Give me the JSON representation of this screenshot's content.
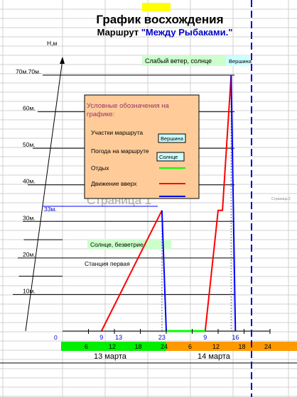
{
  "title": "График восхождения",
  "route": {
    "label": "Маршрут",
    "name": "\"Между Рыбаками.\""
  },
  "watermark": "Страница 1",
  "side_note": "Страница 2",
  "colors": {
    "accent": "#ffff00",
    "route": "#0000cc",
    "ascent": "#ff0000",
    "descent": "#0000ff",
    "rest": "#00ff00",
    "weather_bg": "#ccffcc",
    "summit_bg": "#ccffff",
    "legend_bg": "#ffcc99",
    "legend_text": "#993366",
    "day1_bar": "#00ee00",
    "day2_bar": "#ff9900"
  },
  "legend": {
    "title": "Условные обозначения на графике:",
    "items": [
      {
        "label": "Участки маршрута",
        "badge": "Вершина"
      },
      {
        "label": "Погода на маршруте",
        "badge": "Солнце"
      },
      {
        "label": "Отдых",
        "line": "rest"
      },
      {
        "label": "Движение вверх",
        "line": "ascent"
      }
    ]
  },
  "annotations": [
    {
      "text": "Слабый ветер, солнце",
      "kind": "weather"
    },
    {
      "text": "Вершина",
      "kind": "summit"
    },
    {
      "text": "Солнце, безветрие",
      "kind": "weather"
    },
    {
      "text": "Станция первая",
      "kind": "plain"
    }
  ],
  "chart_data": {
    "type": "line",
    "ylabel": "Н,м",
    "ylim": [
      0,
      80
    ],
    "yticks": [
      {
        "value": 10,
        "label": "10м."
      },
      {
        "value": 20,
        "label": "20м."
      },
      {
        "value": 30,
        "label": "30м."
      },
      {
        "value": 40,
        "label": "40м."
      },
      {
        "value": 50,
        "label": "50м."
      },
      {
        "value": 60,
        "label": "60м."
      },
      {
        "value": 70,
        "label": "70м.70м."
      }
    ],
    "origin_label": "0",
    "extra_ylabel": "33м.",
    "xlim": [
      0,
      48
    ],
    "series": [
      {
        "kind": "ascent",
        "points": [
          [
            9,
            0
          ],
          [
            23,
            33
          ]
        ]
      },
      {
        "kind": "descent",
        "points": [
          [
            23,
            33
          ],
          [
            24,
            0
          ]
        ]
      },
      {
        "kind": "rest",
        "points": [
          [
            24,
            0
          ],
          [
            33,
            0
          ]
        ]
      },
      {
        "kind": "ascent",
        "points": [
          [
            33,
            0
          ],
          [
            36,
            33
          ],
          [
            37,
            33
          ],
          [
            39,
            70
          ]
        ]
      },
      {
        "kind": "descent",
        "points": [
          [
            39,
            70
          ],
          [
            40,
            0
          ]
        ]
      }
    ],
    "point_labels": [
      {
        "x": 9,
        "text": "9"
      },
      {
        "x": 13,
        "text": "13"
      },
      {
        "x": 23,
        "text": "23"
      },
      {
        "x": 33,
        "text": "9"
      },
      {
        "x": 40,
        "text": "16"
      }
    ],
    "hour_ticks": [
      {
        "x": 6,
        "label": "6"
      },
      {
        "x": 12,
        "label": "12"
      },
      {
        "x": 18,
        "label": "18"
      },
      {
        "x": 24,
        "label": "24"
      },
      {
        "x": 30,
        "label": "6"
      },
      {
        "x": 36,
        "label": "12"
      },
      {
        "x": 42,
        "label": "18"
      },
      {
        "x": 48,
        "label": "24"
      }
    ],
    "days": [
      {
        "label": "13 марта",
        "start": 0,
        "end": 24
      },
      {
        "label": "14 марта",
        "start": 24,
        "end": 48
      }
    ]
  }
}
